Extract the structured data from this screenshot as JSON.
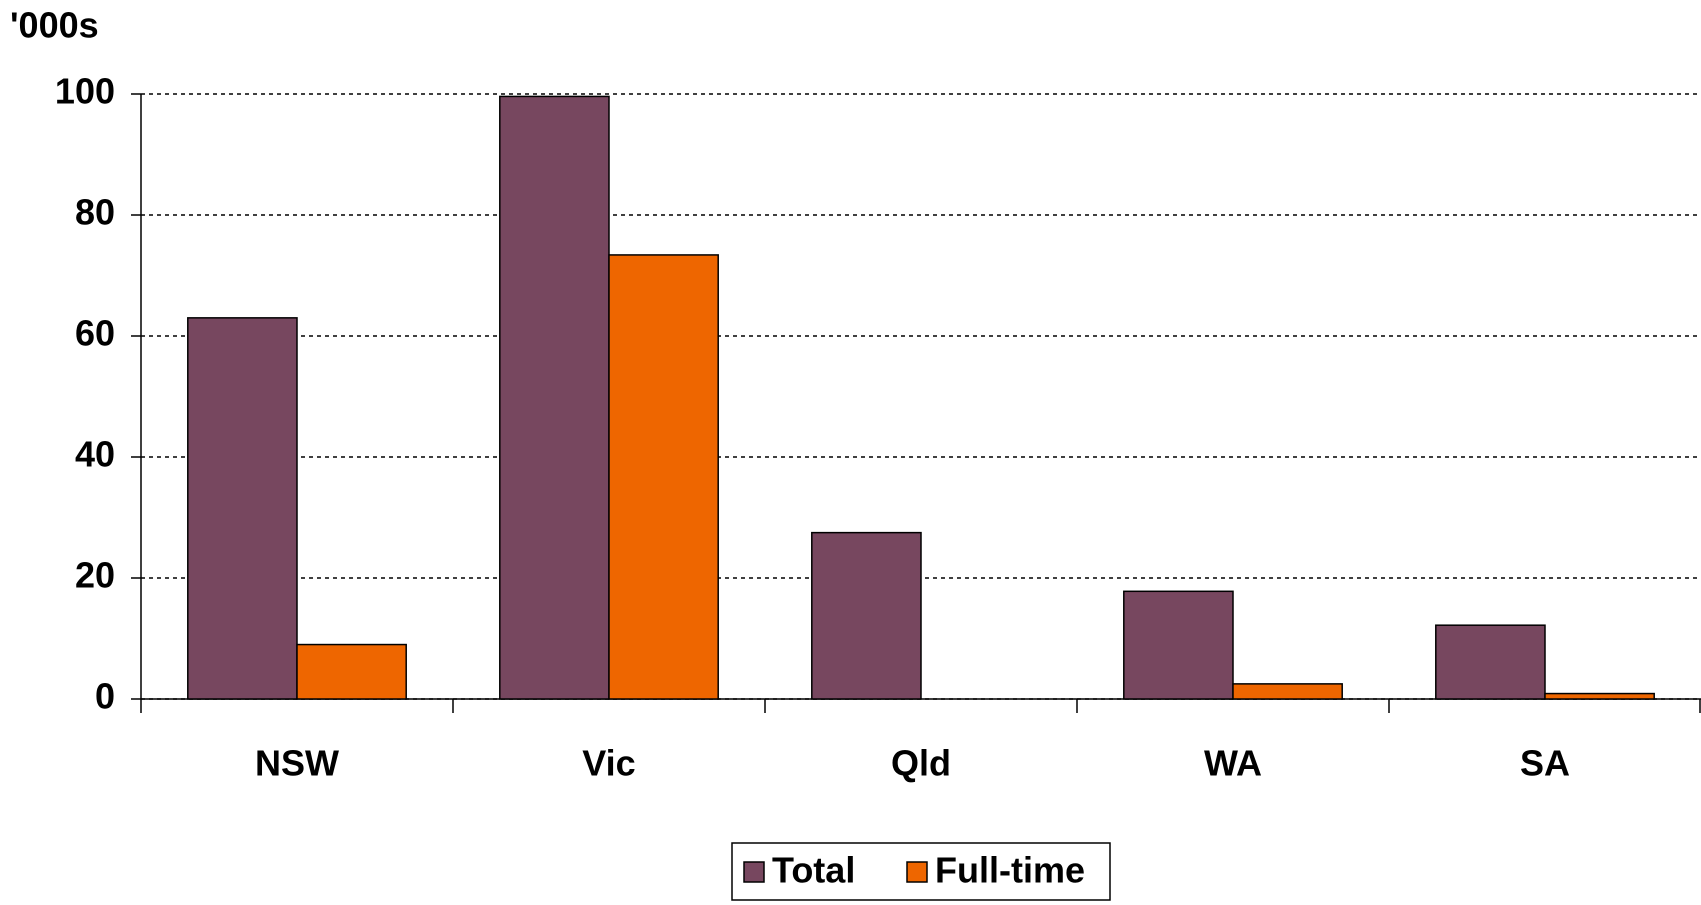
{
  "chart_data": {
    "type": "bar",
    "y_label": "'000s",
    "categories": [
      "NSW",
      "Vic",
      "Qld",
      "WA",
      "SA"
    ],
    "series": [
      {
        "name": "Total",
        "color": "#77475f",
        "values": [
          63,
          99.6,
          27.5,
          17.8,
          12.2
        ]
      },
      {
        "name": "Full-time",
        "color": "#ee6600",
        "values": [
          9,
          73.4,
          0,
          2.5,
          0.9
        ]
      }
    ],
    "ylim": [
      0,
      100
    ],
    "yticks": [
      0,
      20,
      40,
      60,
      80,
      100
    ],
    "grid": true,
    "legend": "bottom"
  }
}
